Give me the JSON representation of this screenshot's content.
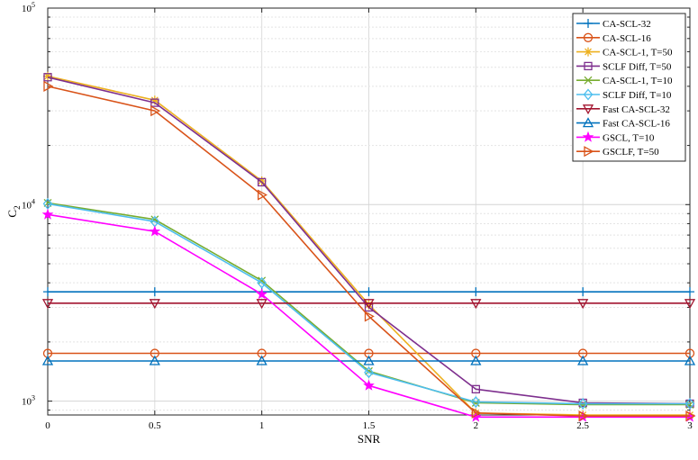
{
  "chart_data": {
    "type": "line",
    "title": "",
    "xlabel": "SNR",
    "ylabel": "C",
    "ylabel_subscript": "2",
    "yscale": "log",
    "xlim": [
      0,
      3
    ],
    "ylim": [
      850,
      100000
    ],
    "grid": true,
    "legend_position": "top-right",
    "x_ticks": [
      0,
      0.5,
      1,
      1.5,
      2,
      2.5,
      3
    ],
    "x_tick_labels": [
      "0",
      "0.5",
      "1",
      "1.5",
      "2",
      "2.5",
      "3"
    ],
    "y_ticks": [
      1000,
      10000,
      100000
    ],
    "y_tick_labels": [
      {
        "base": "10",
        "exp": "3"
      },
      {
        "base": "10",
        "exp": "4"
      },
      {
        "base": "10",
        "exp": "5"
      }
    ],
    "x": [
      0,
      0.5,
      1,
      1.5,
      2,
      2.5,
      3
    ],
    "series": [
      {
        "name": "CA-SCL-32",
        "color": "#0072BD",
        "marker": "plus",
        "values": [
          3600,
          3600,
          3600,
          3600,
          3600,
          3600,
          3600
        ]
      },
      {
        "name": "CA-SCL-16",
        "color": "#D95319",
        "marker": "circle",
        "values": [
          1750,
          1750,
          1750,
          1750,
          1750,
          1750,
          1750
        ]
      },
      {
        "name": "CA-SCL-1, T=50",
        "color": "#EDB120",
        "marker": "asterisk",
        "values": [
          45000,
          34000,
          13200,
          3100,
          870,
          850,
          850
        ]
      },
      {
        "name": "SCLF Diff, T=50",
        "color": "#7E2F8E",
        "marker": "square",
        "values": [
          44500,
          33000,
          13000,
          3000,
          1150,
          980,
          970
        ]
      },
      {
        "name": "CA-SCL-1, T=10",
        "color": "#77AC30",
        "marker": "x",
        "values": [
          10200,
          8400,
          4100,
          1420,
          980,
          960,
          960
        ]
      },
      {
        "name": "SCLF Diff, T=10",
        "color": "#4DBEEE",
        "marker": "diamond",
        "values": [
          10100,
          8200,
          4000,
          1400,
          990,
          970,
          970
        ]
      },
      {
        "name": "Fast CA-SCL-32",
        "color": "#A2142F",
        "marker": "triangle-down",
        "values": [
          3150,
          3150,
          3150,
          3150,
          3150,
          3150,
          3150
        ]
      },
      {
        "name": "Fast CA-SCL-16",
        "color": "#0072BD",
        "marker": "triangle-up",
        "values": [
          1600,
          1600,
          1600,
          1600,
          1600,
          1600,
          1600
        ]
      },
      {
        "name": "GSCL, T=10",
        "color": "#FF00FF",
        "marker": "pentagram",
        "values": [
          8900,
          7300,
          3500,
          1200,
          830,
          830,
          830
        ]
      },
      {
        "name": "GSCLF, T=50",
        "color": "#D95319",
        "marker": "triangle-right",
        "values": [
          40000,
          30000,
          11200,
          2700,
          870,
          840,
          840
        ]
      }
    ]
  }
}
